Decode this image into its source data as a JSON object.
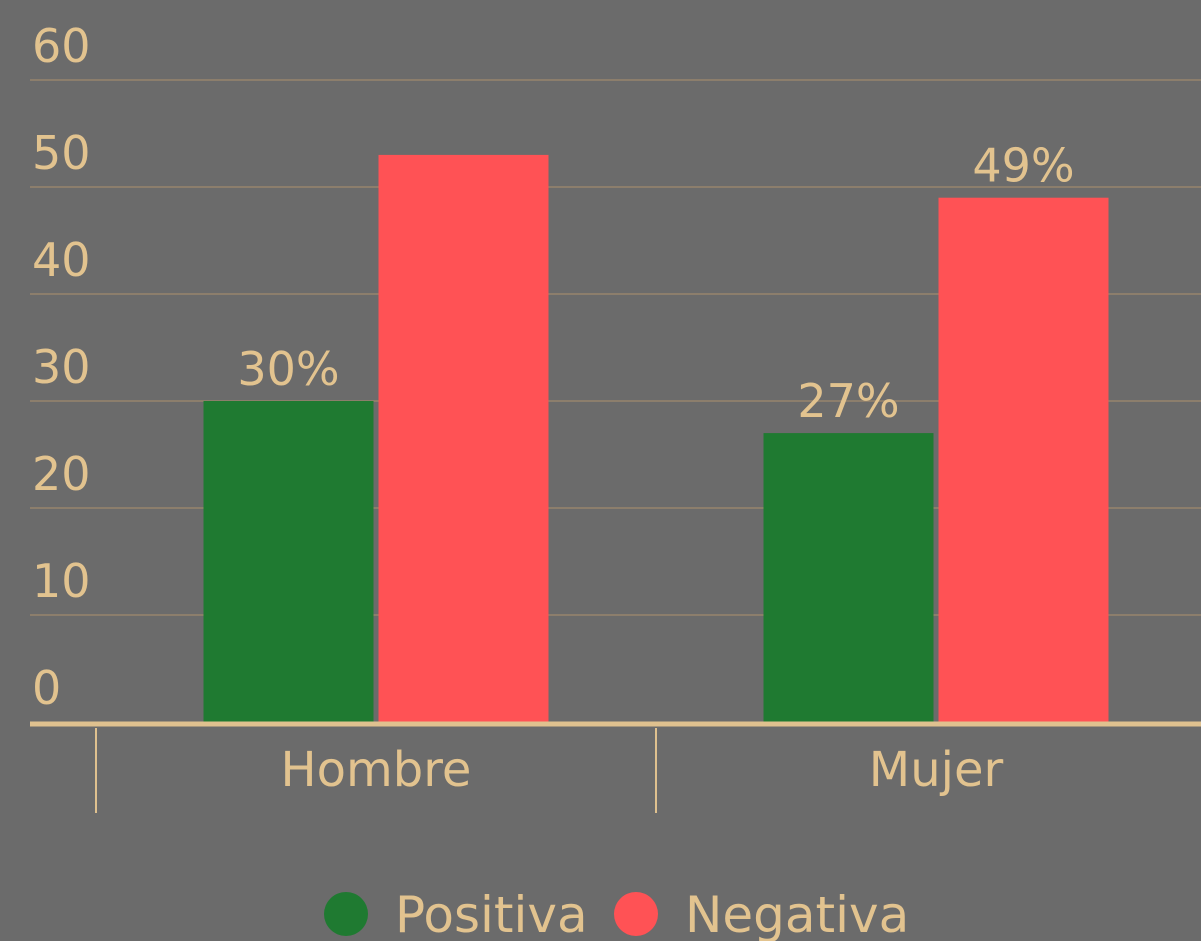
{
  "chart_data": {
    "type": "bar",
    "categories": [
      "Hombre",
      "Mujer"
    ],
    "series": [
      {
        "name": "Positiva",
        "color": "#1f7a31",
        "values": [
          30,
          27
        ],
        "value_labels": [
          "30%",
          "27%"
        ]
      },
      {
        "name": "Negativa",
        "color": "#ff5255",
        "values": [
          53,
          49
        ],
        "value_labels": [
          null,
          "49%"
        ]
      }
    ],
    "ylim": [
      0,
      60
    ],
    "yticks": [
      0,
      10,
      20,
      30,
      40,
      50,
      60
    ],
    "grid": true,
    "legend": "bottom"
  }
}
